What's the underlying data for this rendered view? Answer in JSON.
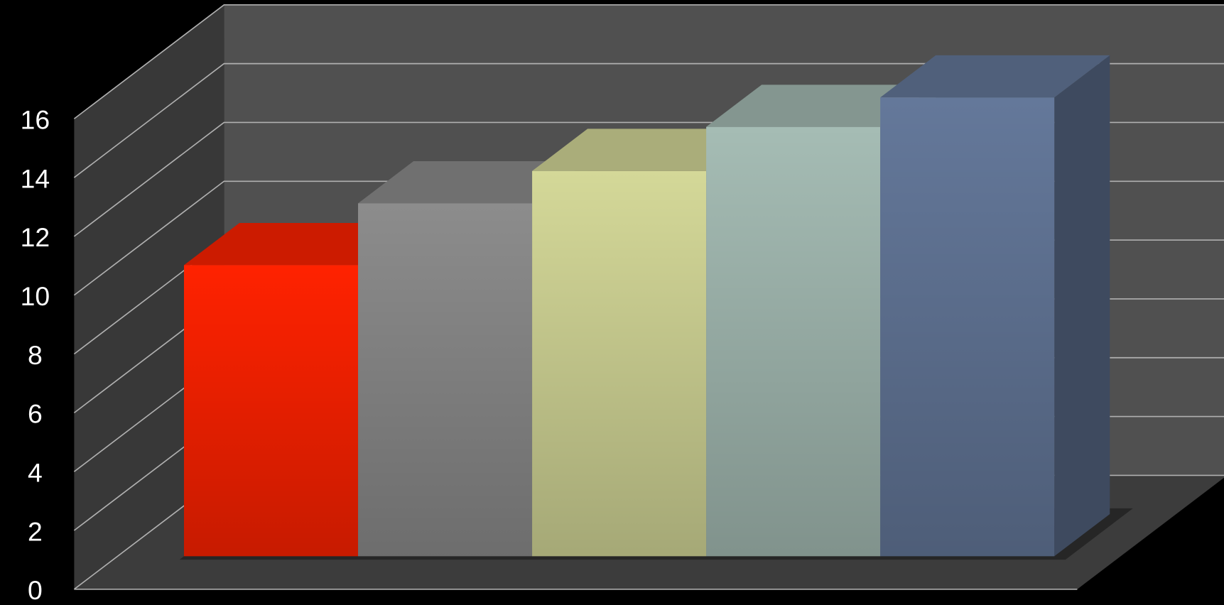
{
  "chart_data": {
    "type": "bar3d",
    "values": [
      9.9,
      12,
      13.1,
      14.6,
      15.6
    ],
    "colors": [
      "#ff2200",
      "#8c8c8c",
      "#d4d898",
      "#a5bcb4",
      "#64789a"
    ],
    "ylim": [
      0,
      16
    ],
    "yticks": [
      0,
      2,
      4,
      6,
      8,
      10,
      12,
      14,
      16
    ],
    "grid": true
  }
}
